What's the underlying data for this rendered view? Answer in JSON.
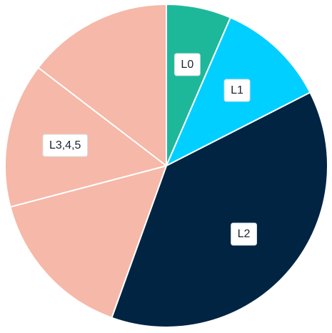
{
  "chart_data": {
    "type": "pie",
    "title": "",
    "start_angle_deg": 0,
    "direction": "clockwise",
    "slices": [
      {
        "id": "l0",
        "value": 6.5,
        "color": "#1DB899"
      },
      {
        "id": "l1",
        "value": 11.0,
        "color": "#00CFFF"
      },
      {
        "id": "l2",
        "value": 38.0,
        "color": "#002442"
      },
      {
        "id": "l3a",
        "value": 15.4,
        "color": "#F6B8A8"
      },
      {
        "id": "l3b",
        "value": 14.5,
        "color": "#F6B8A8"
      },
      {
        "id": "l3c",
        "value": 14.6,
        "color": "#F6B8A8"
      }
    ],
    "labels": [
      {
        "text": "L0",
        "slices": [
          "l0"
        ]
      },
      {
        "text": "L1",
        "slices": [
          "l1"
        ]
      },
      {
        "text": "L2",
        "slices": [
          "l2"
        ]
      },
      {
        "text": "L3,4,5",
        "slices": [
          "l3b"
        ]
      }
    ],
    "separator_color": "#ffffff"
  }
}
